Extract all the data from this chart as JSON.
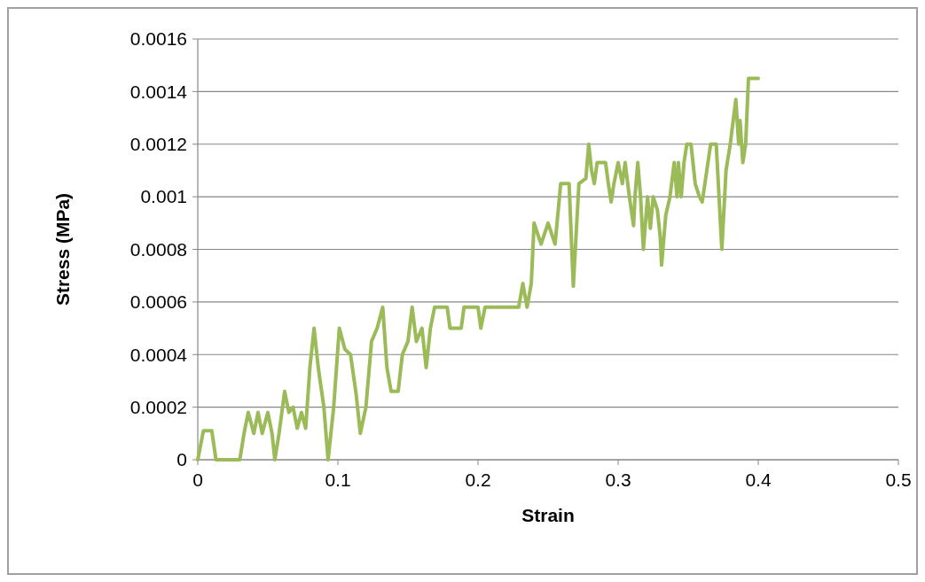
{
  "chart_data": {
    "type": "line",
    "xlabel": "Strain",
    "ylabel": "Stress (MPa)",
    "xlim": [
      0,
      0.5
    ],
    "xticks": [
      0,
      0.1,
      0.2,
      0.3,
      0.4,
      0.5
    ],
    "ylim": [
      0,
      0.0016
    ],
    "yticks": [
      0,
      0.0002,
      0.0004,
      0.0006,
      0.0008,
      0.001,
      0.0012,
      0.0014,
      0.0016
    ],
    "grid": "y",
    "series": [
      {
        "color": "#9bbb59",
        "x": [
          0,
          0.004,
          0.01,
          0.013,
          0.02,
          0.027,
          0.03,
          0.033,
          0.036,
          0.04,
          0.043,
          0.046,
          0.05,
          0.053,
          0.055,
          0.058,
          0.062,
          0.065,
          0.068,
          0.071,
          0.074,
          0.077,
          0.08,
          0.083,
          0.086,
          0.09,
          0.093,
          0.097,
          0.101,
          0.105,
          0.109,
          0.113,
          0.116,
          0.12,
          0.124,
          0.128,
          0.132,
          0.135,
          0.138,
          0.143,
          0.146,
          0.15,
          0.153,
          0.156,
          0.16,
          0.163,
          0.166,
          0.169,
          0.178,
          0.18,
          0.188,
          0.19,
          0.2,
          0.202,
          0.205,
          0.229,
          0.232,
          0.235,
          0.238,
          0.24,
          0.245,
          0.25,
          0.255,
          0.259,
          0.265,
          0.268,
          0.272,
          0.277,
          0.279,
          0.281,
          0.283,
          0.285,
          0.291,
          0.293,
          0.295,
          0.297,
          0.3,
          0.303,
          0.305,
          0.308,
          0.311,
          0.312,
          0.314,
          0.316,
          0.318,
          0.321,
          0.323,
          0.325,
          0.328,
          0.33,
          0.331,
          0.334,
          0.337,
          0.34,
          0.342,
          0.343,
          0.345,
          0.347,
          0.349,
          0.352,
          0.355,
          0.358,
          0.36,
          0.366,
          0.37,
          0.374,
          0.377,
          0.38,
          0.384,
          0.386,
          0.387,
          0.389,
          0.391,
          0.393,
          0.4
        ],
        "values": [
          0,
          0.00011,
          0.00011,
          0,
          0,
          0,
          0,
          0.0001,
          0.00018,
          0.0001,
          0.00018,
          0.0001,
          0.00018,
          0.0001,
          0,
          0.0001,
          0.00026,
          0.00018,
          0.0002,
          0.00012,
          0.00018,
          0.00012,
          0.00035,
          0.0005,
          0.00035,
          0.0002,
          0,
          0.0002,
          0.0005,
          0.00042,
          0.0004,
          0.00025,
          0.0001,
          0.0002,
          0.00045,
          0.0005,
          0.00058,
          0.00035,
          0.00026,
          0.00026,
          0.0004,
          0.00045,
          0.00058,
          0.00045,
          0.0005,
          0.00035,
          0.0005,
          0.00058,
          0.00058,
          0.0005,
          0.0005,
          0.00058,
          0.00058,
          0.0005,
          0.00058,
          0.00058,
          0.00067,
          0.00058,
          0.00067,
          0.0009,
          0.00082,
          0.0009,
          0.00082,
          0.00105,
          0.00105,
          0.00066,
          0.00105,
          0.00107,
          0.0012,
          0.0011,
          0.00105,
          0.00113,
          0.00113,
          0.00105,
          0.00098,
          0.00105,
          0.00113,
          0.00105,
          0.00113,
          0.001,
          0.00089,
          0.001,
          0.00113,
          0.001,
          0.0008,
          0.001,
          0.00088,
          0.001,
          0.00095,
          0.00085,
          0.00074,
          0.00093,
          0.001,
          0.00113,
          0.001,
          0.00113,
          0.001,
          0.00113,
          0.0012,
          0.0012,
          0.00105,
          0.001,
          0.00098,
          0.0012,
          0.0012,
          0.0008,
          0.0011,
          0.0012,
          0.00137,
          0.0012,
          0.00129,
          0.00113,
          0.0012,
          0.00145,
          0.00145
        ]
      }
    ]
  }
}
